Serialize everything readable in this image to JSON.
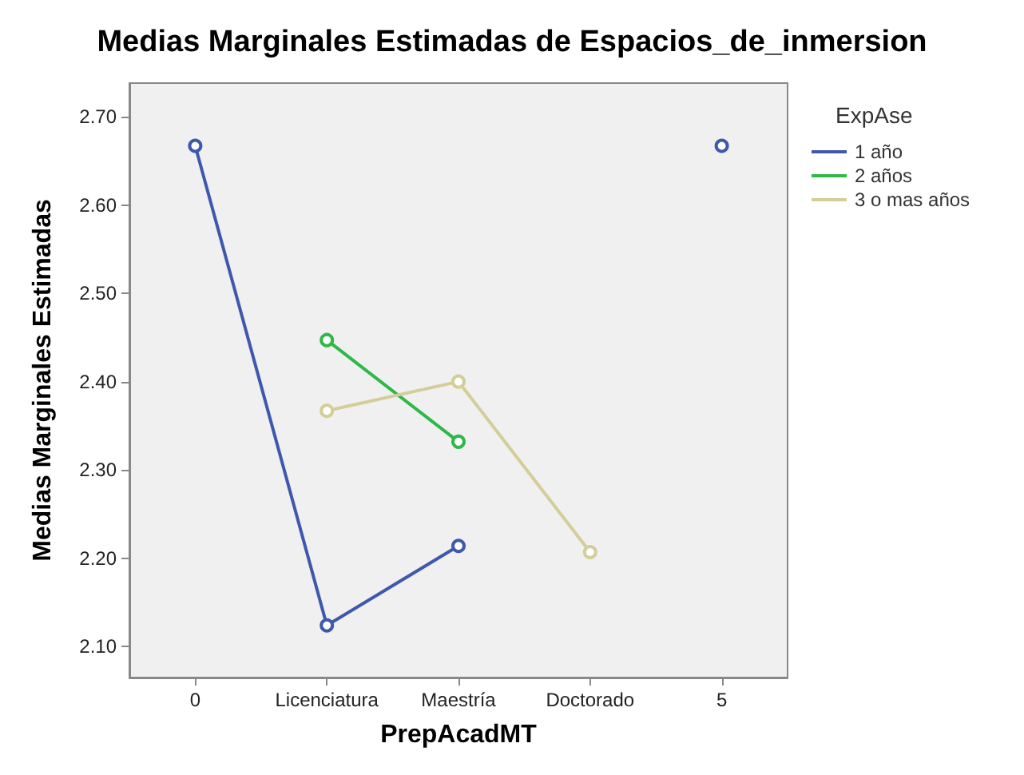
{
  "chart_data": {
    "type": "line",
    "title": "Medias Marginales Estimadas de Espacios_de_inmersion",
    "xlabel": "PrepAcadMT",
    "ylabel": "Medias Marginales Estimadas",
    "legend_title": "ExpAse",
    "categories": [
      "0",
      "Licenciatura",
      "Maestría",
      "Doctorado",
      "5"
    ],
    "series": [
      {
        "name": "1 año",
        "color": "#3e58ac",
        "values": [
          2.667,
          2.124,
          2.214,
          null,
          2.667
        ]
      },
      {
        "name": "2 años",
        "color": "#2eb848",
        "values": [
          null,
          2.447,
          2.332,
          null,
          null
        ]
      },
      {
        "name": "3 o mas años",
        "color": "#d3ce97",
        "values": [
          null,
          2.367,
          2.4,
          2.207,
          null
        ]
      }
    ],
    "ylim": [
      2.065,
      2.738
    ],
    "yticks": [
      {
        "value": 2.1,
        "label": "2.10"
      },
      {
        "value": 2.2,
        "label": "2.20"
      },
      {
        "value": 2.3,
        "label": "2.30"
      },
      {
        "value": 2.4,
        "label": "2.40"
      },
      {
        "value": 2.5,
        "label": "2.50"
      },
      {
        "value": 2.6,
        "label": "2.60"
      },
      {
        "value": 2.7,
        "label": "2.70"
      }
    ],
    "legend": "right",
    "marker": "circle",
    "line_style": "solid",
    "grid": false
  }
}
